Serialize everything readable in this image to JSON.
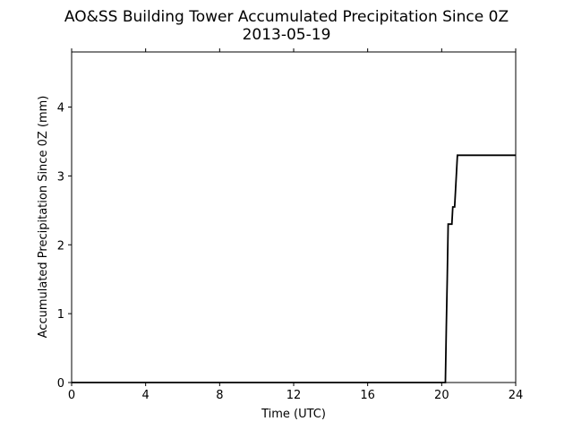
{
  "chart_data": {
    "type": "line",
    "title": "AO&SS Building Tower Accumulated Precipitation Since 0Z",
    "subtitle": "2013-05-19",
    "x_label": "Time (UTC)",
    "y_label": "Accumulated Precipitation Since 0Z (mm)",
    "x": [
      0,
      20.2,
      20.25,
      20.3,
      20.35,
      20.4,
      20.55,
      20.6,
      20.7,
      20.75,
      20.8,
      20.85,
      24
    ],
    "series": [
      {
        "color": "#000000",
        "values": [
          0,
          0,
          0.8,
          1.5,
          2.3,
          2.3,
          2.3,
          2.55,
          2.55,
          2.8,
          3.05,
          3.3,
          3.3
        ]
      }
    ],
    "xlim": [
      0,
      24
    ],
    "xticks": [
      0,
      4,
      8,
      12,
      16,
      20,
      24
    ],
    "ylim": [
      0,
      4.8
    ],
    "yticks": [
      0,
      1,
      2,
      3,
      4
    ]
  }
}
